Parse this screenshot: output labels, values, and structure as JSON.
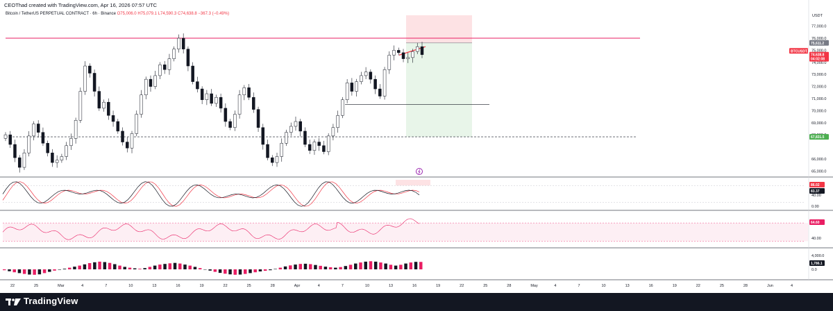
{
  "header": {
    "credit": "CEOThad created with TradingView.com, Apr 16, 2026 07:57 UTC",
    "symbol": "Bitcoin / TetherUS PERPETUAL CONTRACT · 6h · Binance",
    "ohlc": "O75,006.0  H75,079.1  L74,590.3  C74,638.8  −367.3 (−0.49%)"
  },
  "footer": {
    "brand": "TradingView"
  },
  "colors": {
    "up": "#131722",
    "down": "#131722",
    "accent": "#f23645",
    "pink": "#e91e63",
    "green_zone": "#e8f5e9",
    "red_zone": "#fde2e4",
    "panel_bg": "#fce4ec"
  },
  "chart_data": {
    "type": "line",
    "title": "Bitcoin / TetherUS PERPETUAL CONTRACT · 6h · Binance",
    "price_axis": {
      "currency_label": "USDT",
      "range": [
        64500,
        77900
      ],
      "ticks": [
        "77,000.0",
        "76,000.0",
        "75,000.0",
        "74,000.0",
        "73,000.0",
        "72,000.0",
        "71,000.0",
        "70,000.0",
        "69,000.0",
        "68,000.0",
        "66,000.0",
        "65,000.0"
      ],
      "labels": {
        "resistance": "75,611.2",
        "last": "74,638.8",
        "symbol_badge": "BTCUSDT.P",
        "countdown": "04:02:08",
        "support": "67,831.5"
      }
    },
    "time_axis": {
      "ticks": [
        "22",
        "25",
        "Mar",
        "4",
        "7",
        "10",
        "13",
        "16",
        "19",
        "22",
        "25",
        "28",
        "Apr",
        "4",
        "7",
        "10",
        "13",
        "16",
        "19",
        "22",
        "25",
        "28",
        "May",
        "4",
        "7",
        "10",
        "13",
        "16",
        "19",
        "22",
        "25",
        "28",
        "Jun",
        "4"
      ]
    },
    "series": [
      {
        "name": "BTCUSDT.P",
        "values": [
          68000,
          67200,
          66100,
          65300,
          66500,
          67900,
          68900,
          68200,
          67300,
          66500,
          65700,
          65900,
          66200,
          67100,
          67700,
          69200,
          71600,
          73700,
          73100,
          71600,
          70200,
          70700,
          69600,
          69100,
          68300,
          67400,
          66900,
          68100,
          69700,
          71300,
          72600,
          72000,
          72900,
          73800,
          73400,
          74300,
          75100,
          76000,
          75100,
          73700,
          72400,
          71800,
          70900,
          71400,
          70600,
          71100,
          70200,
          69100,
          68600,
          69700,
          71300,
          71900,
          71100,
          70100,
          68600,
          67200,
          66100,
          65700,
          66200,
          67300,
          68200,
          68700,
          69100,
          68300,
          67200,
          66700,
          67400,
          67100,
          66600,
          67900,
          68600,
          69600,
          70900,
          72300,
          71600,
          72400,
          72900,
          73200,
          72600,
          71800,
          71200,
          73400,
          74600,
          75000,
          74800,
          74300,
          74400,
          74900,
          75300,
          74638.8
        ]
      }
    ],
    "levels": {
      "resistance_line": 76000,
      "horizontal_ray": 70500,
      "dashed_support": 67831.5
    },
    "position_tool": {
      "stop_top": 77900,
      "entry": 75611.2,
      "target": 67831.5
    },
    "indicators": {
      "stoch": {
        "ticks": [
          "40.00",
          "0.00"
        ],
        "values": [
          "86.02",
          "83.37"
        ]
      },
      "rsi": {
        "ticks": [
          "40.00"
        ],
        "value": "64.60"
      },
      "macd_hist": {
        "ticks": [
          "4,000.0",
          "0.0"
        ],
        "value": "1,786.1",
        "values": [
          -200,
          -450,
          -700,
          -900,
          -1100,
          -1250,
          -1300,
          -1200,
          -900,
          -600,
          -300,
          -100,
          150,
          400,
          650,
          900,
          1200,
          1500,
          1700,
          1850,
          1750,
          1550,
          1250,
          900,
          600,
          400,
          250,
          150,
          300,
          600,
          900,
          1150,
          1300,
          1450,
          1550,
          1400,
          1150,
          900,
          600,
          300,
          0,
          -300,
          -600,
          -850,
          -1050,
          -1200,
          -1300,
          -1250,
          -1100,
          -900,
          -700,
          -500,
          -350,
          -200,
          100,
          400,
          700,
          950,
          1150,
          1300,
          1350,
          1250,
          1050,
          850,
          650,
          500,
          400,
          550,
          800,
          1100,
          1400,
          1650,
          1850,
          1950,
          1850,
          1650,
          1400,
          1100,
          900,
          1100,
          1400,
          1650,
          1800,
          1786
        ]
      }
    },
    "grid": false
  }
}
